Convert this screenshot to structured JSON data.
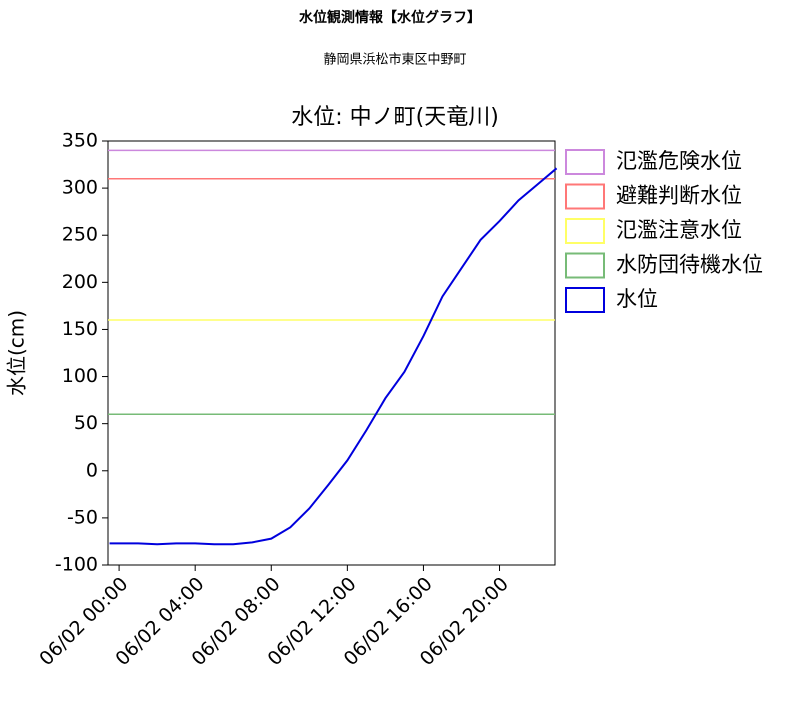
{
  "header": {
    "title": "水位観測情報【水位グラフ】",
    "subtitle": "静岡県浜松市東区中野町"
  },
  "chart_data": {
    "type": "line",
    "title": "水位: 中ノ町(天竜川)",
    "ylabel": "水位(cm)",
    "x": [
      "06/01 23:30",
      "06/02 00:00",
      "06/02 01:00",
      "06/02 02:00",
      "06/02 03:00",
      "06/02 04:00",
      "06/02 05:00",
      "06/02 06:00",
      "06/02 07:00",
      "06/02 08:00",
      "06/02 09:00",
      "06/02 10:00",
      "06/02 11:00",
      "06/02 12:00",
      "06/02 13:00",
      "06/02 14:00",
      "06/02 15:00",
      "06/02 16:00",
      "06/02 17:00",
      "06/02 18:00",
      "06/02 19:00",
      "06/02 20:00",
      "06/02 21:00",
      "06/02 22:00",
      "06/02 23:00"
    ],
    "thresholds": [
      {
        "name": "氾濫危険水位",
        "color": "#cc88dd",
        "value": 340
      },
      {
        "name": "避難判断水位",
        "color": "#ff7777",
        "value": 310
      },
      {
        "name": "氾濫注意水位",
        "color": "#ffff66",
        "value": 160
      },
      {
        "name": "水防団待機水位",
        "color": "#77bb77",
        "value": 60
      }
    ],
    "series": [
      {
        "name": "水位",
        "color": "#0000dd",
        "values": [
          -77,
          -77,
          -77,
          -78,
          -77,
          -77,
          -78,
          -78,
          -76,
          -72,
          -60,
          -40,
          -15,
          11,
          43,
          77,
          105,
          143,
          185,
          215,
          245,
          265,
          287,
          304,
          321
        ]
      }
    ],
    "xlim": [
      "06/01 23:25",
      "06/02 22:55"
    ],
    "xticks": [
      "06/02 00:00",
      "06/02 04:00",
      "06/02 08:00",
      "06/02 12:00",
      "06/02 16:00",
      "06/02 20:00"
    ],
    "ylim": [
      -100,
      350
    ],
    "yticks": [
      -100,
      -50,
      0,
      50,
      100,
      150,
      200,
      250,
      300,
      350
    ]
  }
}
